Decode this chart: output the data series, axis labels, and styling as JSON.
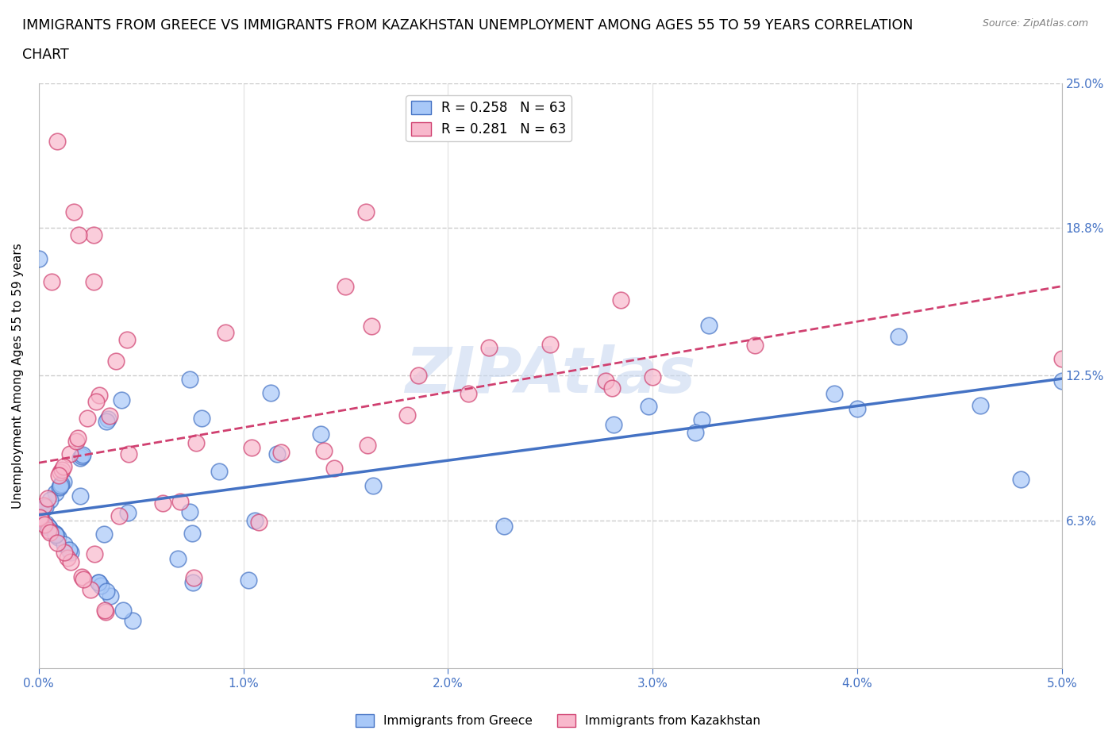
{
  "title_line1": "IMMIGRANTS FROM GREECE VS IMMIGRANTS FROM KAZAKHSTAN UNEMPLOYMENT AMONG AGES 55 TO 59 YEARS CORRELATION",
  "title_line2": "CHART",
  "source": "Source: ZipAtlas.com",
  "ylabel": "Unemployment Among Ages 55 to 59 years",
  "xlim": [
    0.0,
    0.05
  ],
  "ylim": [
    0.0,
    0.25
  ],
  "xtick_vals": [
    0.0,
    0.01,
    0.02,
    0.03,
    0.04,
    0.05
  ],
  "xtick_labels": [
    "0.0%",
    "1.0%",
    "2.0%",
    "3.0%",
    "4.0%",
    "5.0%"
  ],
  "ytick_right_values": [
    0.063,
    0.125,
    0.188,
    0.25
  ],
  "ytick_right_labels": [
    "6.3%",
    "12.5%",
    "18.8%",
    "25.0%"
  ],
  "watermark": "ZIPAtlas",
  "legend_greece": "R = 0.258   N = 63",
  "legend_kazakhstan": "R = 0.281   N = 63",
  "greece_color": "#a8c8f8",
  "greece_edge": "#4472c4",
  "greece_trend_color": "#4472c4",
  "kazakhstan_color": "#f8b8cc",
  "kazakhstan_edge": "#d04070",
  "kazakhstan_trend_color": "#d04070",
  "background_color": "#ffffff",
  "grid_color": "#cccccc",
  "title_fontsize": 12.5,
  "axis_label_fontsize": 11,
  "tick_fontsize": 11,
  "watermark_text": "ZIPAtlas",
  "watermark_color": "#c8d8f0",
  "watermark_alpha": 0.6
}
